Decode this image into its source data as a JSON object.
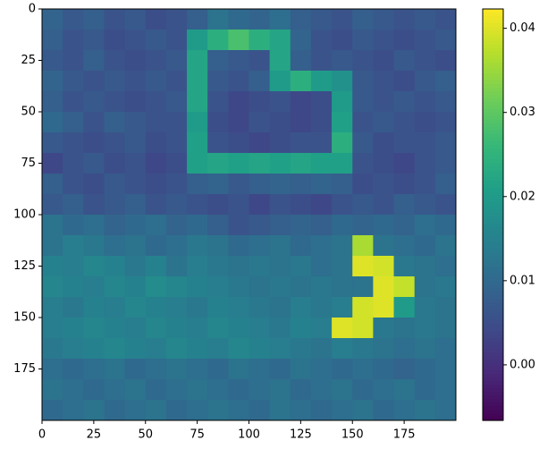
{
  "chart_data": {
    "type": "heatmap",
    "colormap": "viridis",
    "xlim": [
      0,
      200
    ],
    "ylim": [
      200,
      0
    ],
    "xticks": [
      0,
      25,
      50,
      75,
      100,
      125,
      150,
      175
    ],
    "yticks": [
      0,
      25,
      50,
      75,
      100,
      125,
      150,
      175
    ],
    "clim": [
      -0.0066,
      0.0423
    ],
    "cticks": [
      {
        "value": 0,
        "label": "0.00"
      },
      {
        "value": 0.01,
        "label": "0.01"
      },
      {
        "value": 0.02,
        "label": "0.02"
      },
      {
        "value": 0.03,
        "label": "0.03"
      },
      {
        "value": 0.04,
        "label": "0.04"
      }
    ],
    "z": [
      [
        0.009,
        0.007,
        0.008,
        0.006,
        0.007,
        0.005,
        0.006,
        0.008,
        0.012,
        0.01,
        0.009,
        0.011,
        0.008,
        0.007,
        0.006,
        0.008,
        0.007,
        0.006,
        0.007,
        0.006
      ],
      [
        0.008,
        0.006,
        0.007,
        0.005,
        0.006,
        0.007,
        0.006,
        0.02,
        0.024,
        0.028,
        0.024,
        0.022,
        0.009,
        0.006,
        0.005,
        0.007,
        0.006,
        0.005,
        0.006,
        0.007
      ],
      [
        0.007,
        0.006,
        0.008,
        0.006,
        0.005,
        0.006,
        0.007,
        0.022,
        0.008,
        0.007,
        0.006,
        0.022,
        0.008,
        0.006,
        0.007,
        0.006,
        0.005,
        0.007,
        0.006,
        0.005
      ],
      [
        0.009,
        0.007,
        0.006,
        0.007,
        0.006,
        0.007,
        0.006,
        0.022,
        0.007,
        0.006,
        0.008,
        0.02,
        0.024,
        0.02,
        0.018,
        0.007,
        0.006,
        0.005,
        0.007,
        0.008
      ],
      [
        0.008,
        0.006,
        0.007,
        0.006,
        0.005,
        0.006,
        0.007,
        0.022,
        0.006,
        0.004,
        0.005,
        0.006,
        0.004,
        0.005,
        0.02,
        0.007,
        0.006,
        0.007,
        0.006,
        0.007
      ],
      [
        0.01,
        0.008,
        0.006,
        0.008,
        0.007,
        0.006,
        0.006,
        0.02,
        0.005,
        0.004,
        0.006,
        0.005,
        0.004,
        0.005,
        0.021,
        0.006,
        0.007,
        0.006,
        0.005,
        0.006
      ],
      [
        0.007,
        0.006,
        0.005,
        0.006,
        0.007,
        0.005,
        0.006,
        0.021,
        0.006,
        0.005,
        0.004,
        0.005,
        0.006,
        0.006,
        0.024,
        0.007,
        0.005,
        0.006,
        0.006,
        0.007
      ],
      [
        0.004,
        0.006,
        0.007,
        0.005,
        0.006,
        0.004,
        0.005,
        0.021,
        0.022,
        0.021,
        0.022,
        0.021,
        0.022,
        0.021,
        0.021,
        0.006,
        0.005,
        0.004,
        0.006,
        0.007
      ],
      [
        0.008,
        0.006,
        0.005,
        0.007,
        0.006,
        0.005,
        0.006,
        0.008,
        0.009,
        0.007,
        0.008,
        0.009,
        0.008,
        0.009,
        0.008,
        0.005,
        0.006,
        0.005,
        0.006,
        0.008
      ],
      [
        0.007,
        0.008,
        0.006,
        0.007,
        0.008,
        0.006,
        0.007,
        0.006,
        0.005,
        0.006,
        0.004,
        0.006,
        0.005,
        0.004,
        0.006,
        0.007,
        0.006,
        0.008,
        0.007,
        0.006
      ],
      [
        0.012,
        0.01,
        0.011,
        0.009,
        0.01,
        0.011,
        0.009,
        0.01,
        0.008,
        0.006,
        0.007,
        0.008,
        0.009,
        0.008,
        0.01,
        0.009,
        0.01,
        0.009,
        0.011,
        0.01
      ],
      [
        0.012,
        0.014,
        0.013,
        0.011,
        0.012,
        0.01,
        0.011,
        0.013,
        0.012,
        0.01,
        0.011,
        0.012,
        0.01,
        0.011,
        0.012,
        0.036,
        0.012,
        0.011,
        0.01,
        0.012
      ],
      [
        0.015,
        0.014,
        0.016,
        0.015,
        0.013,
        0.015,
        0.012,
        0.014,
        0.013,
        0.012,
        0.013,
        0.012,
        0.013,
        0.011,
        0.012,
        0.04,
        0.039,
        0.013,
        0.012,
        0.011
      ],
      [
        0.016,
        0.015,
        0.014,
        0.016,
        0.015,
        0.017,
        0.016,
        0.015,
        0.014,
        0.013,
        0.012,
        0.013,
        0.012,
        0.013,
        0.012,
        0.012,
        0.04,
        0.038,
        0.012,
        0.013
      ],
      [
        0.014,
        0.013,
        0.015,
        0.014,
        0.016,
        0.015,
        0.014,
        0.013,
        0.015,
        0.014,
        0.013,
        0.012,
        0.014,
        0.013,
        0.014,
        0.039,
        0.04,
        0.02,
        0.013,
        0.012
      ],
      [
        0.014,
        0.015,
        0.016,
        0.015,
        0.014,
        0.016,
        0.015,
        0.014,
        0.016,
        0.015,
        0.014,
        0.013,
        0.015,
        0.014,
        0.04,
        0.039,
        0.013,
        0.012,
        0.013,
        0.012
      ],
      [
        0.013,
        0.014,
        0.015,
        0.016,
        0.015,
        0.014,
        0.016,
        0.015,
        0.014,
        0.016,
        0.015,
        0.014,
        0.013,
        0.012,
        0.014,
        0.013,
        0.012,
        0.011,
        0.012,
        0.011
      ],
      [
        0.011,
        0.01,
        0.011,
        0.012,
        0.01,
        0.011,
        0.012,
        0.011,
        0.01,
        0.012,
        0.011,
        0.01,
        0.012,
        0.011,
        0.01,
        0.011,
        0.01,
        0.009,
        0.01,
        0.011
      ],
      [
        0.012,
        0.011,
        0.01,
        0.011,
        0.012,
        0.01,
        0.011,
        0.012,
        0.011,
        0.01,
        0.011,
        0.012,
        0.01,
        0.011,
        0.012,
        0.01,
        0.011,
        0.012,
        0.01,
        0.011
      ],
      [
        0.01,
        0.011,
        0.012,
        0.01,
        0.011,
        0.012,
        0.01,
        0.011,
        0.012,
        0.011,
        0.01,
        0.012,
        0.011,
        0.01,
        0.011,
        0.012,
        0.01,
        0.011,
        0.012,
        0.011
      ]
    ]
  }
}
